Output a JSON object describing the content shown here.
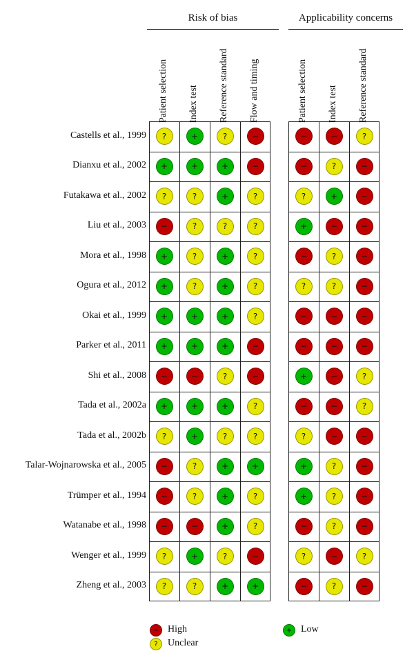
{
  "colors": {
    "high": "#c00000",
    "unclear": "#e6e600",
    "low": "#00b800"
  },
  "groups": [
    {
      "title": "Risk of bias",
      "columns": [
        "Patient selection",
        "Index test",
        "Reference standard",
        "Flow and timing"
      ]
    },
    {
      "title": "Applicability concerns",
      "columns": [
        "Patient selection",
        "Index test",
        "Reference standard"
      ]
    }
  ],
  "symbols": {
    "high": "−",
    "unclear": "?",
    "low": "+"
  },
  "legend": {
    "high": "High",
    "unclear": "Unclear",
    "low": "Low"
  },
  "chart_data": {
    "type": "table",
    "title": "",
    "studies": [
      {
        "name": "Castells et al., 1999",
        "risk": [
          "unclear",
          "low",
          "unclear",
          "high"
        ],
        "applicability": [
          "high",
          "high",
          "unclear"
        ]
      },
      {
        "name": "Dianxu et al., 2002",
        "risk": [
          "low",
          "low",
          "low",
          "high"
        ],
        "applicability": [
          "high",
          "unclear",
          "high"
        ]
      },
      {
        "name": "Futakawa et al., 2002",
        "risk": [
          "unclear",
          "unclear",
          "low",
          "unclear"
        ],
        "applicability": [
          "unclear",
          "low",
          "high"
        ]
      },
      {
        "name": "Liu et al., 2003",
        "risk": [
          "high",
          "unclear",
          "unclear",
          "unclear"
        ],
        "applicability": [
          "low",
          "high",
          "high"
        ]
      },
      {
        "name": "Mora et al., 1998",
        "risk": [
          "low",
          "unclear",
          "low",
          "unclear"
        ],
        "applicability": [
          "high",
          "unclear",
          "high"
        ]
      },
      {
        "name": "Ogura et al., 2012",
        "risk": [
          "low",
          "unclear",
          "low",
          "unclear"
        ],
        "applicability": [
          "unclear",
          "unclear",
          "high"
        ]
      },
      {
        "name": "Okai et al., 1999",
        "risk": [
          "low",
          "low",
          "low",
          "unclear"
        ],
        "applicability": [
          "high",
          "high",
          "high"
        ]
      },
      {
        "name": "Parker et al., 2011",
        "risk": [
          "low",
          "low",
          "low",
          "high"
        ],
        "applicability": [
          "high",
          "high",
          "high"
        ]
      },
      {
        "name": "Shi et al., 2008",
        "risk": [
          "high",
          "high",
          "unclear",
          "high"
        ],
        "applicability": [
          "low",
          "high",
          "unclear"
        ]
      },
      {
        "name": "Tada et al., 2002a",
        "risk": [
          "low",
          "low",
          "low",
          "unclear"
        ],
        "applicability": [
          "high",
          "high",
          "unclear"
        ]
      },
      {
        "name": "Tada et al., 2002b",
        "risk": [
          "unclear",
          "low",
          "unclear",
          "unclear"
        ],
        "applicability": [
          "unclear",
          "high",
          "high"
        ]
      },
      {
        "name": "Talar-Wojnarowska et al., 2005",
        "risk": [
          "high",
          "unclear",
          "low",
          "low"
        ],
        "applicability": [
          "low",
          "unclear",
          "high"
        ]
      },
      {
        "name": "Trümper et al., 1994",
        "risk": [
          "high",
          "unclear",
          "low",
          "unclear"
        ],
        "applicability": [
          "low",
          "unclear",
          "high"
        ]
      },
      {
        "name": "Watanabe et al., 1998",
        "risk": [
          "high",
          "high",
          "low",
          "unclear"
        ],
        "applicability": [
          "high",
          "unclear",
          "high"
        ]
      },
      {
        "name": "Wenger et al., 1999",
        "risk": [
          "unclear",
          "low",
          "unclear",
          "high"
        ],
        "applicability": [
          "unclear",
          "high",
          "unclear"
        ]
      },
      {
        "name": "Zheng et al., 2003",
        "risk": [
          "unclear",
          "unclear",
          "low",
          "low"
        ],
        "applicability": [
          "high",
          "unclear",
          "high"
        ]
      }
    ]
  }
}
